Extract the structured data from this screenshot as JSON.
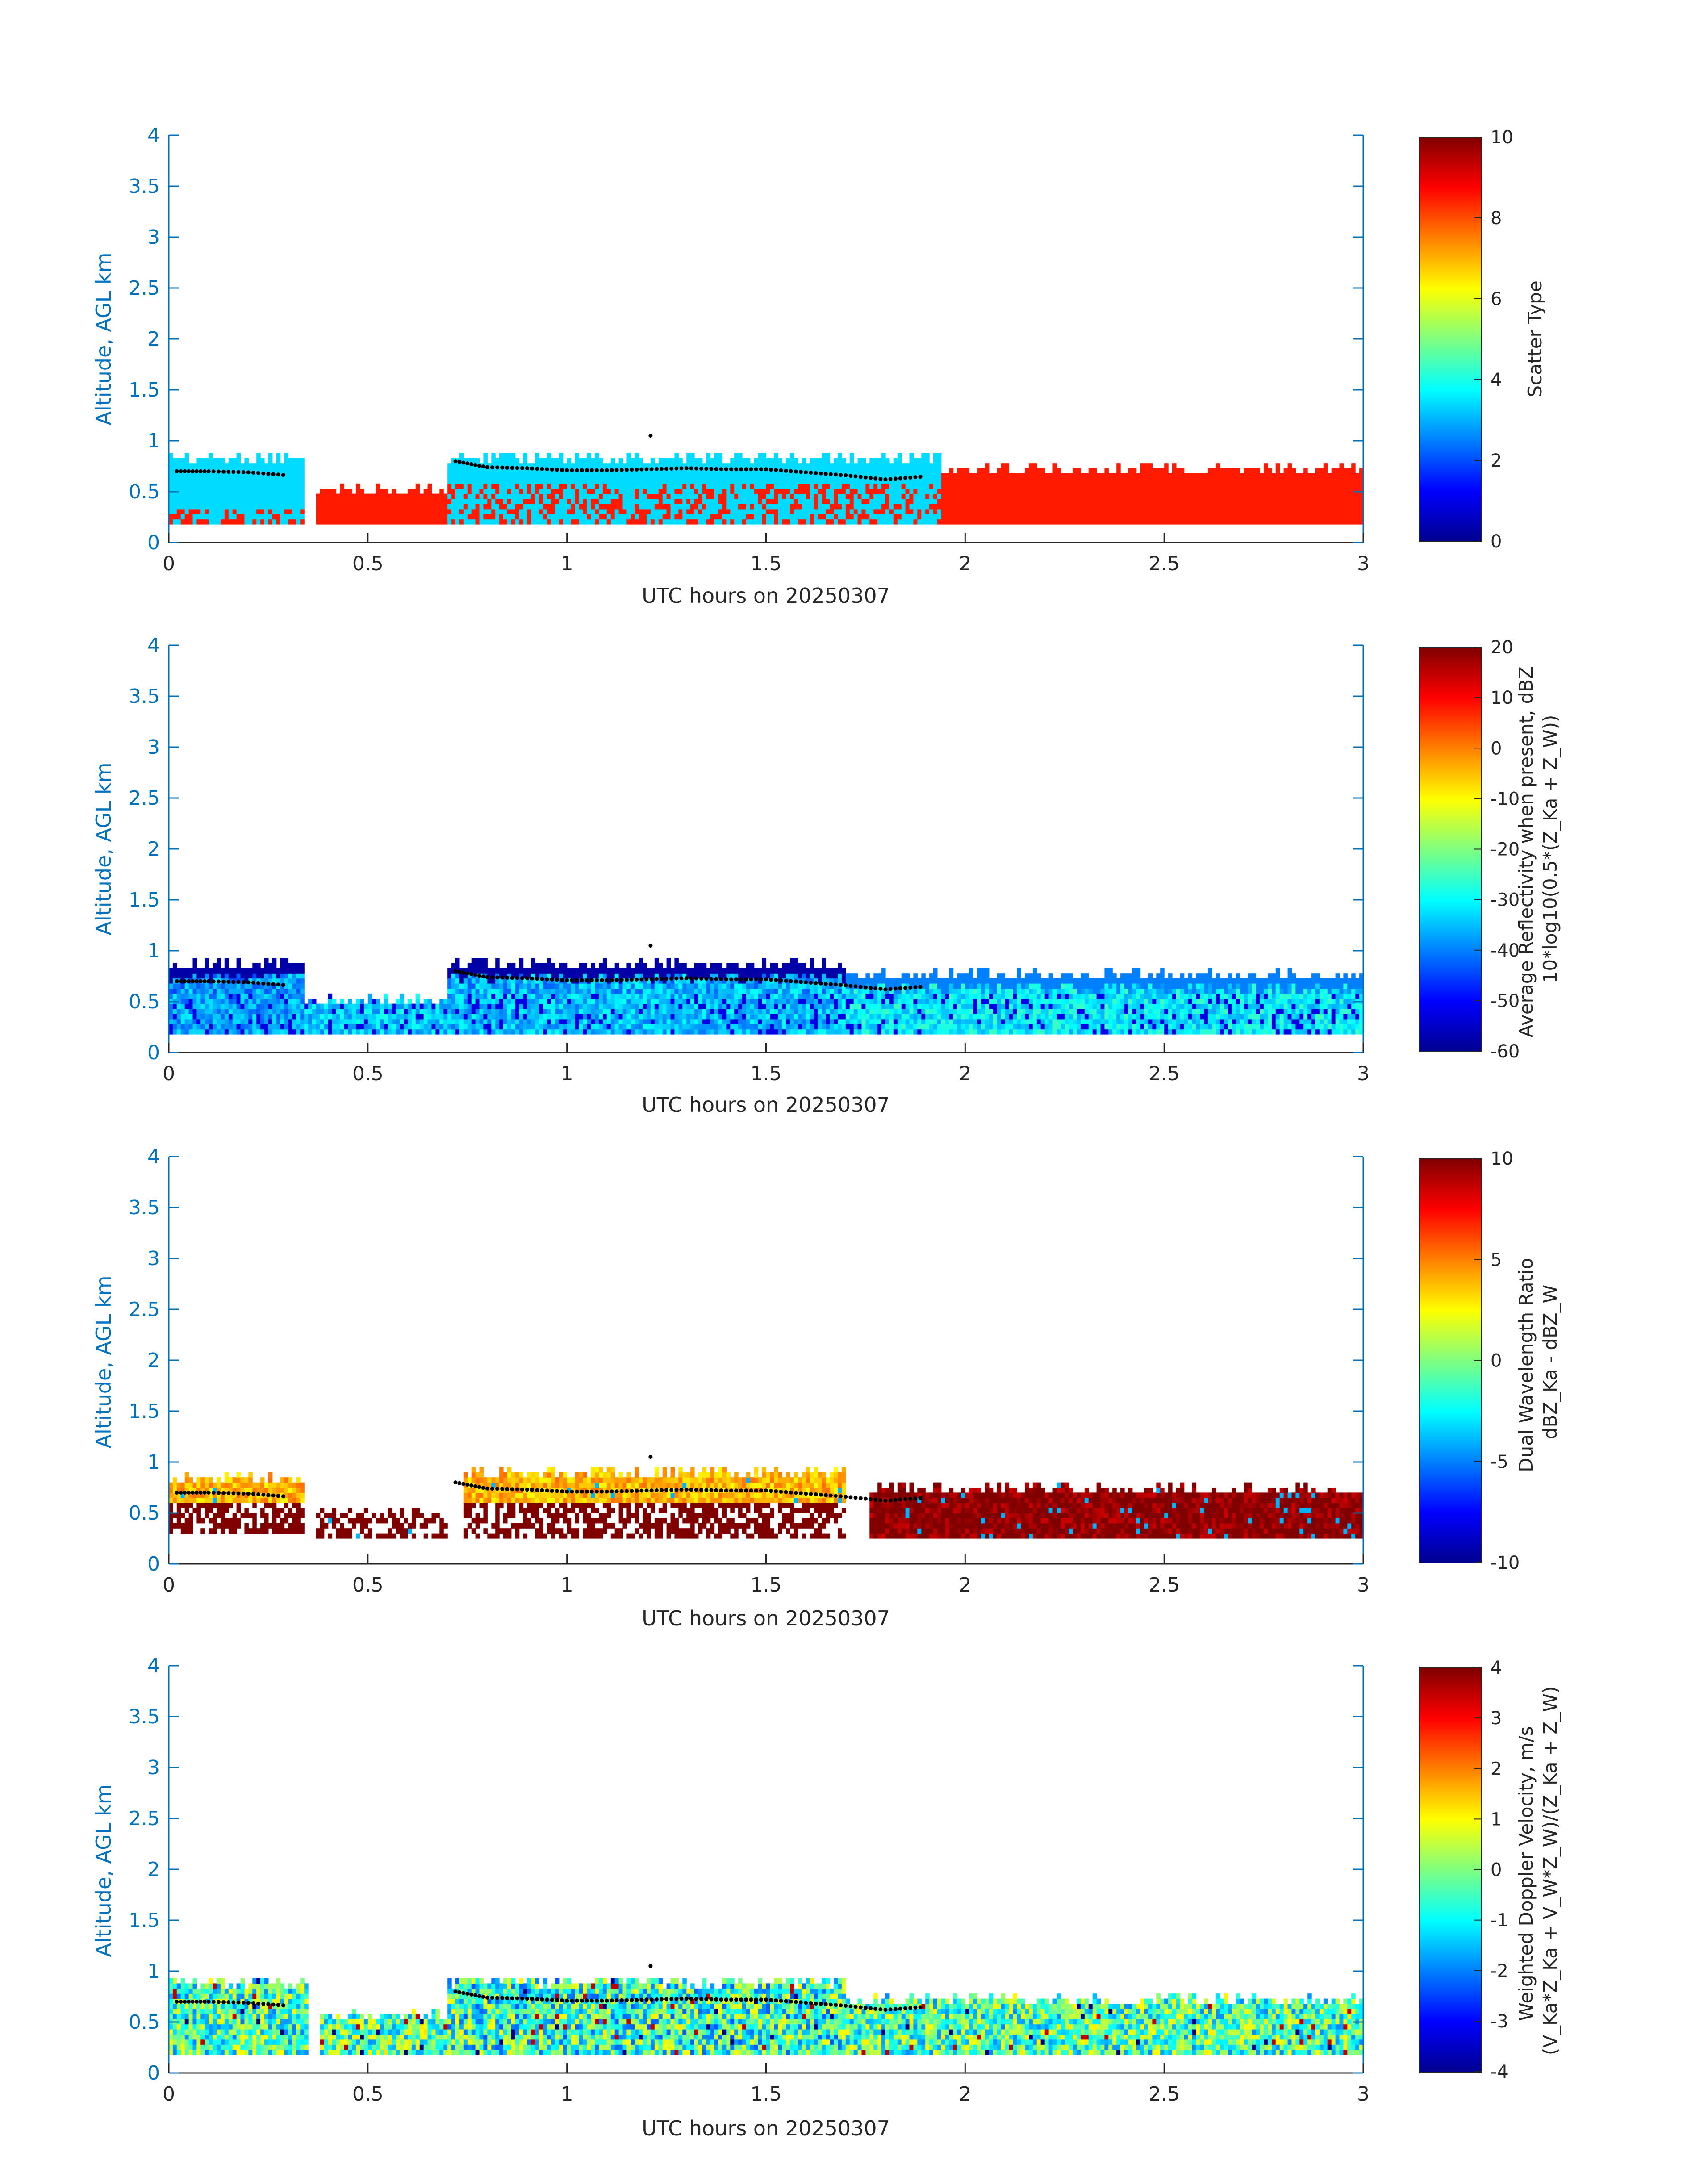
{
  "chart_data": [
    {
      "type": "heatmap",
      "xlabel": "UTC hours on 20250307",
      "ylabel": "Altitude, AGL km",
      "xlim": [
        0,
        3
      ],
      "ylim": [
        0,
        4
      ],
      "xticks": [
        "0",
        "0.5",
        "1",
        "1.5",
        "2",
        "2.5",
        "3"
      ],
      "yticks": [
        "0",
        "0.5",
        "1",
        "1.5",
        "2",
        "2.5",
        "3",
        "3.5",
        "4"
      ],
      "colorbar": {
        "label_lines": [
          "Scatter Type"
        ],
        "range": [
          0,
          10
        ],
        "ticks": [
          "0",
          "2",
          "4",
          "6",
          "8",
          "10"
        ]
      },
      "overlay": "cloud-base-dots",
      "segments": [
        {
          "start": 0.0,
          "end": 0.34,
          "bottom": 0.18,
          "top": 0.87,
          "value": 3.4,
          "note": "cyan with orange at base"
        },
        {
          "start": 0.37,
          "end": 0.7,
          "bottom": 0.18,
          "top": 0.55,
          "value": 8.5
        },
        {
          "start": 0.7,
          "end": 1.94,
          "bottom": 0.18,
          "top": 0.87,
          "value": 3.4,
          "mixed_value": 8.5
        },
        {
          "start": 1.94,
          "end": 3.0,
          "bottom": 0.18,
          "top": 0.75,
          "value": 8.5
        }
      ]
    },
    {
      "type": "heatmap",
      "xlabel": "UTC hours on 20250307",
      "ylabel": "Altitude, AGL km",
      "xlim": [
        0,
        3
      ],
      "ylim": [
        0,
        4
      ],
      "xticks": [
        "0",
        "0.5",
        "1",
        "1.5",
        "2",
        "2.5",
        "3"
      ],
      "yticks": [
        "0",
        "0.5",
        "1",
        "1.5",
        "2",
        "2.5",
        "3",
        "3.5",
        "4"
      ],
      "colorbar": {
        "label_lines": [
          "Average Reflectivity when present, dBZ",
          "10*log10(0.5*(Z_Ka + Z_W))"
        ],
        "range": [
          -60,
          20
        ],
        "ticks": [
          "-60",
          "-50",
          "-40",
          "-30",
          "-20",
          "-10",
          "0",
          "10",
          "20"
        ]
      },
      "overlay": "cloud-base-dots",
      "segments": [
        {
          "start": 0.0,
          "end": 0.34,
          "bottom": 0.18,
          "top": 0.9,
          "value": -38,
          "edge_value": -57
        },
        {
          "start": 0.34,
          "end": 0.7,
          "bottom": 0.18,
          "top": 0.55,
          "value": -35
        },
        {
          "start": 0.7,
          "end": 1.7,
          "bottom": 0.18,
          "top": 0.9,
          "value": -36,
          "edge_value": -57
        },
        {
          "start": 1.7,
          "end": 3.0,
          "bottom": 0.18,
          "top": 0.8,
          "value": -32,
          "edge_value": -40
        }
      ]
    },
    {
      "type": "heatmap",
      "xlabel": "UTC hours on 20250307",
      "ylabel": "Altitude, AGL km",
      "xlim": [
        0,
        3
      ],
      "ylim": [
        0,
        4
      ],
      "xticks": [
        "0",
        "0.5",
        "1",
        "1.5",
        "2",
        "2.5",
        "3"
      ],
      "yticks": [
        "0",
        "0.5",
        "1",
        "1.5",
        "2",
        "2.5",
        "3",
        "3.5",
        "4"
      ],
      "colorbar": {
        "label_lines": [
          "Dual Wavelength Ratio",
          "dBZ_Ka - dBZ_W"
        ],
        "range": [
          -10,
          10
        ],
        "ticks": [
          "-10",
          "-5",
          "0",
          "5",
          "10"
        ]
      },
      "overlay": "cloud-base-dots",
      "segments": [
        {
          "start": 0.0,
          "end": 0.34,
          "bottom": 0.3,
          "top": 0.87,
          "value": 4,
          "lower_value": 10
        },
        {
          "start": 0.37,
          "end": 0.7,
          "bottom": 0.25,
          "top": 0.55,
          "value": 10,
          "sparse": true
        },
        {
          "start": 0.74,
          "end": 1.7,
          "bottom": 0.25,
          "top": 0.93,
          "value": 4,
          "lower_value": 10
        },
        {
          "start": 1.76,
          "end": 3.0,
          "bottom": 0.25,
          "top": 0.77,
          "value": 10
        }
      ]
    },
    {
      "type": "heatmap",
      "xlabel": "UTC hours on 20250307",
      "ylabel": "Altitude, AGL km",
      "xlim": [
        0,
        3
      ],
      "ylim": [
        0,
        4
      ],
      "xticks": [
        "0",
        "0.5",
        "1",
        "1.5",
        "2",
        "2.5",
        "3"
      ],
      "yticks": [
        "0",
        "0.5",
        "1",
        "1.5",
        "2",
        "2.5",
        "3",
        "3.5",
        "4"
      ],
      "colorbar": {
        "label_lines": [
          "Weighted Doppler Velocity, m/s",
          "(V_Ka*Z_Ka + V_W*Z_W)/(Z_Ka + Z_W)"
        ],
        "range": [
          -4,
          4
        ],
        "ticks": [
          "-4",
          "-3",
          "-2",
          "-1",
          "0",
          "1",
          "2",
          "3",
          "4"
        ]
      },
      "overlay": "cloud-base-dots",
      "segments": [
        {
          "start": 0.0,
          "end": 0.35,
          "bottom": 0.18,
          "top": 0.93,
          "value": -0.5,
          "spread": 1.6
        },
        {
          "start": 0.38,
          "end": 0.7,
          "bottom": 0.18,
          "top": 0.6,
          "value": -0.3,
          "spread": 1.6
        },
        {
          "start": 0.7,
          "end": 1.7,
          "bottom": 0.18,
          "top": 0.93,
          "value": -0.6,
          "spread": 1.8
        },
        {
          "start": 1.7,
          "end": 3.0,
          "bottom": 0.18,
          "top": 0.75,
          "value": -0.4,
          "spread": 1.6
        }
      ]
    }
  ],
  "cloud_base_km": {
    "x": [
      0.02,
      0.1,
      0.2,
      0.3,
      0.72,
      0.8,
      0.9,
      1.0,
      1.1,
      1.2,
      1.3,
      1.4,
      1.5,
      1.6,
      1.7,
      1.8,
      1.9
    ],
    "y": [
      0.7,
      0.7,
      0.69,
      0.66,
      0.8,
      0.74,
      0.73,
      0.71,
      0.71,
      0.72,
      0.73,
      0.72,
      0.72,
      0.69,
      0.66,
      0.62,
      0.65
    ]
  },
  "colors": {
    "axis": "#0072bd",
    "text": "#262626",
    "background": "#ffffff"
  }
}
